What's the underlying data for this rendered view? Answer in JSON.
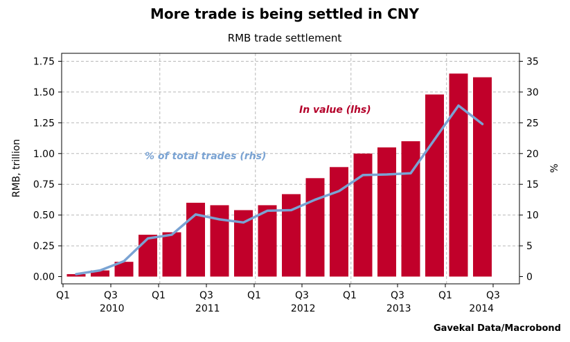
{
  "chart_data": {
    "type": "bar",
    "title": "More trade is being settled in CNY",
    "subtitle": "RMB trade settlement",
    "ylabel_left": "RMB, trillion",
    "ylabel_right": "%",
    "source": "Gavekal Data/Macrobond",
    "ylim_left": [
      0,
      1.75
    ],
    "ylim_right": [
      0,
      35
    ],
    "yticks_left": [
      "0.00",
      "0.25",
      "0.50",
      "0.75",
      "1.00",
      "1.25",
      "1.50",
      "1.75"
    ],
    "yticks_right": [
      "0",
      "5",
      "10",
      "15",
      "20",
      "25",
      "30",
      "35"
    ],
    "x_quarter_ticks": [
      "Q1",
      "Q3",
      "Q1",
      "Q3",
      "Q1",
      "Q3",
      "Q1",
      "Q3",
      "Q1",
      "Q3"
    ],
    "x_year_labels": [
      "2010",
      "2011",
      "2012",
      "2013",
      "2014"
    ],
    "grid": true,
    "colors": {
      "bars": "#c1002a",
      "line": "#7aa3d3",
      "value_annotation": "#b4002a",
      "share_annotation": "#7aa3d3"
    },
    "series": [
      {
        "name": "In value (lhs)",
        "type": "bar",
        "axis": "left",
        "values": [
          0.02,
          0.05,
          0.12,
          0.34,
          0.36,
          0.6,
          0.58,
          0.54,
          0.58,
          0.67,
          0.8,
          0.89,
          1.0,
          1.05,
          1.1,
          1.48,
          1.65,
          1.62
        ]
      },
      {
        "name": "% of total trades (rhs)",
        "type": "line",
        "axis": "right",
        "values": [
          0.4,
          1.0,
          2.5,
          6.2,
          6.8,
          10.1,
          9.3,
          8.8,
          10.7,
          10.8,
          12.5,
          13.9,
          16.5,
          16.6,
          16.8,
          22.3,
          27.8,
          24.8
        ]
      }
    ]
  }
}
